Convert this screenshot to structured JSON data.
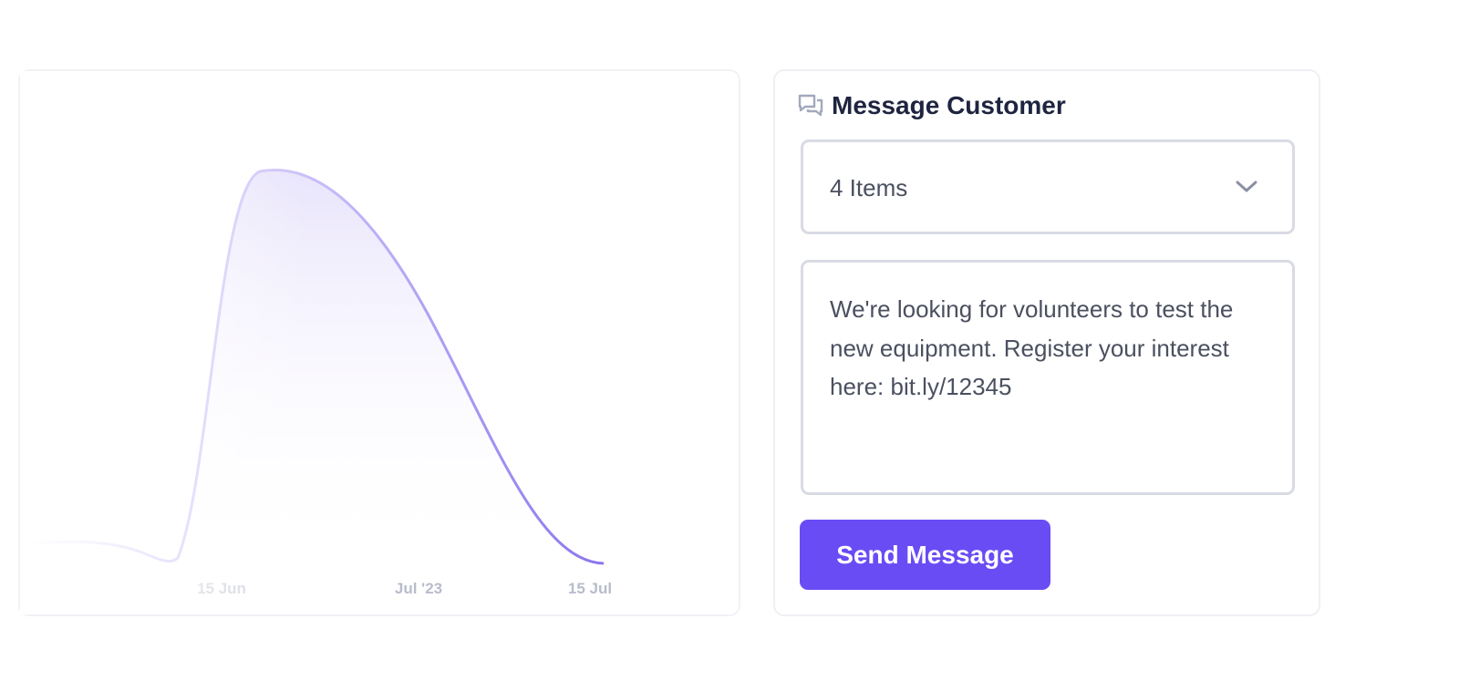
{
  "chart_panel": {
    "x_labels": [
      "15 Jun",
      "Jul '23",
      "15 Jul"
    ]
  },
  "message_panel": {
    "title": "Message Customer",
    "select": "4 Items",
    "message": "We're looking for volunteers to test the new equipment. Register your interest here: bit.ly/12345",
    "button": "Send Message"
  }
}
